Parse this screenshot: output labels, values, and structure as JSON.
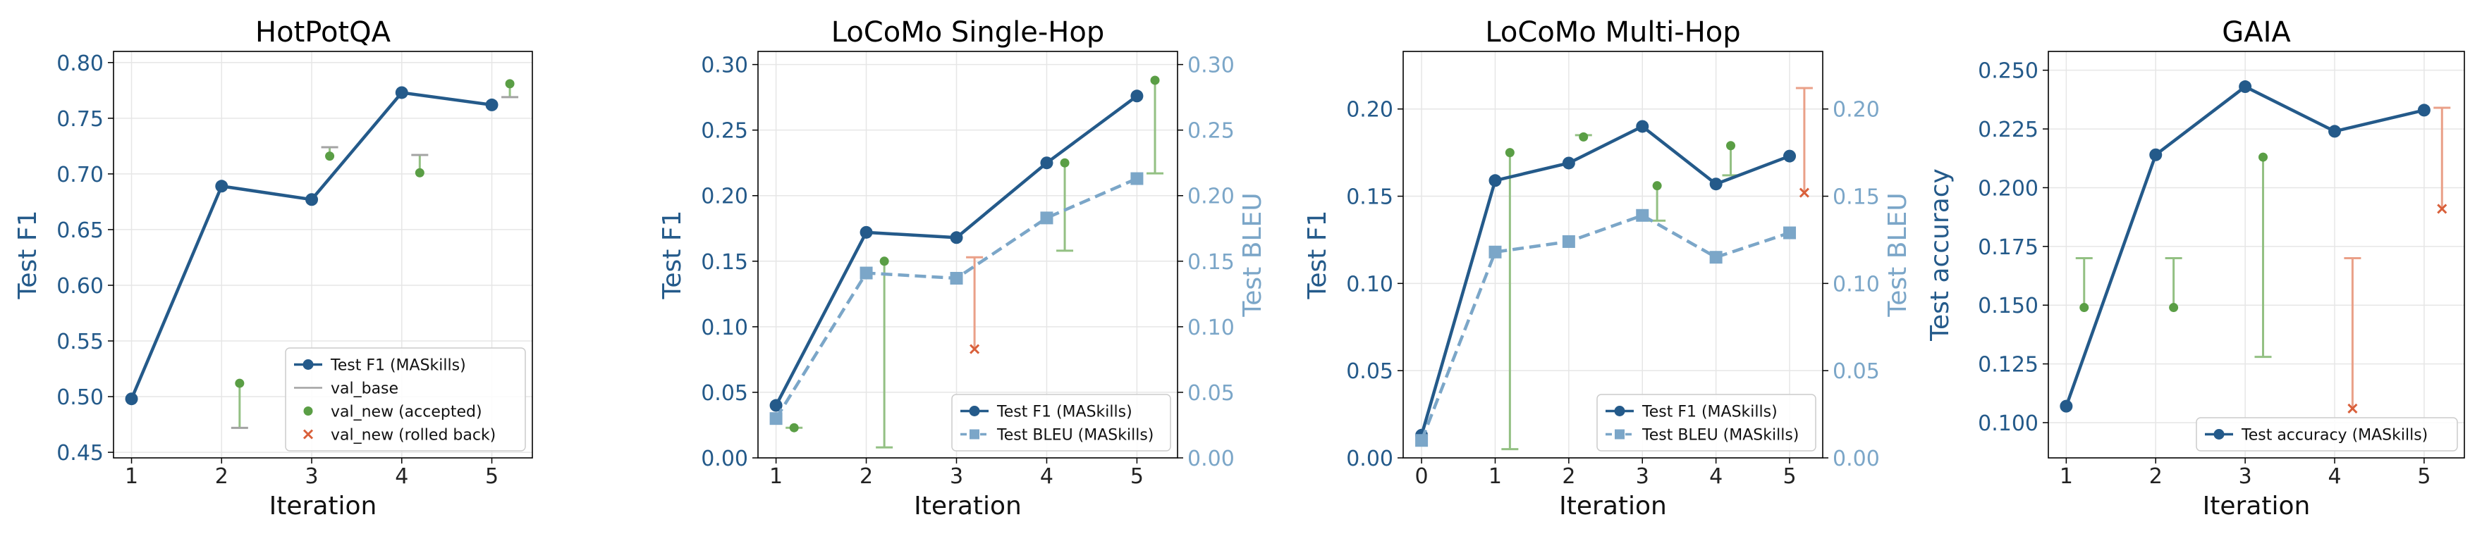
{
  "colors": {
    "f1": "#245a8a",
    "bleu": "#7ba6c8",
    "accepted": "#5a9e45",
    "accepted_bar": "#93c083",
    "rolled_back": "#d9603b",
    "rolled_back_bar": "#eaa088",
    "val_base": "#a3a3a3",
    "grid": "#e6e6e6"
  },
  "chart_data": [
    {
      "type": "line",
      "title": "HotPotQA",
      "xlabel": "Iteration",
      "ylabel": "Test F1",
      "x_ticks": [
        1,
        2,
        3,
        4,
        5
      ],
      "xlim": [
        0.8,
        5.45
      ],
      "ylim": [
        0.445,
        0.81
      ],
      "y_ticks": [
        "0.45",
        "0.50",
        "0.55",
        "0.60",
        "0.65",
        "0.70",
        "0.75",
        "0.80"
      ],
      "grid": true,
      "legend_position": "bottom-right",
      "series": [
        {
          "name": "Test F1 (MASkills)",
          "x": [
            1,
            2,
            3,
            4,
            5
          ],
          "values": [
            0.498,
            0.689,
            0.677,
            0.773,
            0.762
          ]
        }
      ],
      "validation": [
        {
          "x": 2.2,
          "val_base": 0.472,
          "val_new": 0.512,
          "status": "accepted"
        },
        {
          "x": 3.2,
          "val_base": 0.724,
          "val_new": 0.716,
          "status": "accepted"
        },
        {
          "x": 4.2,
          "val_base": 0.717,
          "val_new": 0.701,
          "status": "accepted"
        },
        {
          "x": 5.2,
          "val_base": 0.769,
          "val_new": 0.781,
          "status": "accepted"
        }
      ],
      "legend": [
        "Test F1 (MASkills)",
        "val_base",
        "val_new (accepted)",
        "val_new (rolled back)"
      ]
    },
    {
      "type": "line",
      "title": "LoCoMo Single-Hop",
      "xlabel": "Iteration",
      "ylabel": "Test F1",
      "y2label": "Test BLEU",
      "x_ticks": [
        1,
        2,
        3,
        4,
        5
      ],
      "xlim": [
        0.8,
        5.45
      ],
      "ylim": [
        0.0,
        0.31
      ],
      "y_ticks": [
        "0.00",
        "0.05",
        "0.10",
        "0.15",
        "0.20",
        "0.25",
        "0.30"
      ],
      "y2lim": [
        0.0,
        0.31
      ],
      "y2_ticks": [
        "0.00",
        "0.05",
        "0.10",
        "0.15",
        "0.20",
        "0.25",
        "0.30"
      ],
      "grid": true,
      "legend_position": "bottom-right",
      "series": [
        {
          "name": "Test F1 (MASkills)",
          "axis": "left",
          "x": [
            1,
            2,
            3,
            4,
            5
          ],
          "values": [
            0.04,
            0.172,
            0.168,
            0.225,
            0.276
          ]
        },
        {
          "name": "Test BLEU (MASkills)",
          "axis": "right",
          "x": [
            1,
            2,
            3,
            4,
            5
          ],
          "values": [
            0.03,
            0.141,
            0.137,
            0.183,
            0.213
          ]
        }
      ],
      "validation": [
        {
          "x": 1.2,
          "val_base": 0.023,
          "val_new": 0.023,
          "status": "accepted"
        },
        {
          "x": 2.2,
          "val_base": 0.008,
          "val_new": 0.15,
          "status": "accepted"
        },
        {
          "x": 3.2,
          "val_base": 0.153,
          "val_new": 0.083,
          "status": "rolled back"
        },
        {
          "x": 4.2,
          "val_base": 0.158,
          "val_new": 0.225,
          "status": "accepted"
        },
        {
          "x": 5.2,
          "val_base": 0.217,
          "val_new": 0.288,
          "status": "accepted"
        }
      ],
      "legend": [
        "Test F1 (MASkills)",
        "Test BLEU (MASkills)"
      ]
    },
    {
      "type": "line",
      "title": "LoCoMo Multi-Hop",
      "xlabel": "Iteration",
      "ylabel": "Test F1",
      "y2label": "Test BLEU",
      "x_ticks": [
        0,
        1,
        2,
        3,
        4,
        5
      ],
      "xlim": [
        -0.25,
        5.45
      ],
      "ylim": [
        0.0,
        0.233
      ],
      "y_ticks": [
        "0.00",
        "0.05",
        "0.10",
        "0.15",
        "0.20"
      ],
      "y2lim": [
        0.0,
        0.233
      ],
      "y2_ticks": [
        "0.00",
        "0.05",
        "0.10",
        "0.15",
        "0.20"
      ],
      "grid": true,
      "legend_position": "bottom-right",
      "series": [
        {
          "name": "Test F1 (MASkills)",
          "axis": "left",
          "x": [
            0,
            1,
            2,
            3,
            4,
            5
          ],
          "values": [
            0.013,
            0.159,
            0.169,
            0.19,
            0.157,
            0.173
          ]
        },
        {
          "name": "Test BLEU (MASkills)",
          "axis": "right",
          "x": [
            0,
            1,
            2,
            3,
            4,
            5
          ],
          "values": [
            0.01,
            0.118,
            0.124,
            0.139,
            0.115,
            0.129
          ]
        }
      ],
      "validation": [
        {
          "x": 1.2,
          "val_base": 0.005,
          "val_new": 0.175,
          "status": "accepted"
        },
        {
          "x": 2.2,
          "val_base": 0.185,
          "val_new": 0.184,
          "status": "accepted"
        },
        {
          "x": 3.2,
          "val_base": 0.136,
          "val_new": 0.156,
          "status": "accepted"
        },
        {
          "x": 4.2,
          "val_base": 0.162,
          "val_new": 0.179,
          "status": "accepted"
        },
        {
          "x": 5.2,
          "val_base": 0.212,
          "val_new": 0.152,
          "status": "rolled back"
        }
      ],
      "legend": [
        "Test F1 (MASkills)",
        "Test BLEU (MASkills)"
      ]
    },
    {
      "type": "line",
      "title": "GAIA",
      "xlabel": "Iteration",
      "ylabel": "Test accuracy",
      "x_ticks": [
        1,
        2,
        3,
        4,
        5
      ],
      "xlim": [
        0.8,
        5.45
      ],
      "ylim": [
        0.085,
        0.258
      ],
      "y_ticks": [
        "0.100",
        "0.125",
        "0.150",
        "0.175",
        "0.200",
        "0.225",
        "0.250"
      ],
      "grid": true,
      "legend_position": "bottom-right",
      "series": [
        {
          "name": "Test accuracy (MASkills)",
          "x": [
            1,
            2,
            3,
            4,
            5
          ],
          "values": [
            0.107,
            0.214,
            0.243,
            0.224,
            0.233
          ]
        }
      ],
      "validation": [
        {
          "x": 1.2,
          "val_base": 0.17,
          "val_new": 0.149,
          "status": "accepted"
        },
        {
          "x": 2.2,
          "val_base": 0.17,
          "val_new": 0.149,
          "status": "accepted"
        },
        {
          "x": 3.2,
          "val_base": 0.128,
          "val_new": 0.213,
          "status": "accepted"
        },
        {
          "x": 4.2,
          "val_base": 0.17,
          "val_new": 0.106,
          "status": "rolled back"
        },
        {
          "x": 5.2,
          "val_base": 0.234,
          "val_new": 0.191,
          "status": "rolled back"
        }
      ],
      "legend": [
        "Test accuracy (MASkills)"
      ]
    }
  ]
}
